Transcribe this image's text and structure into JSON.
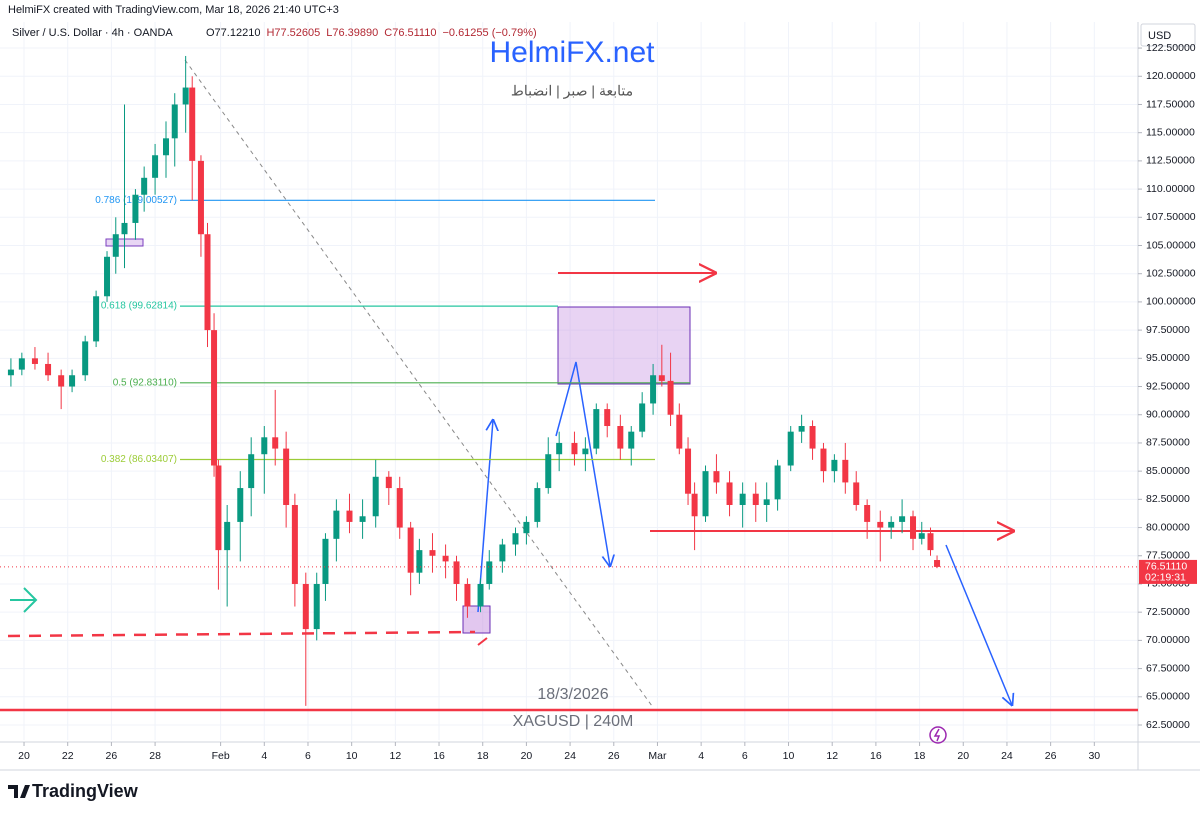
{
  "header": {
    "creator": "HelmiFX created with TradingView.com, Mar 18, 2026 21:40 UTC+3"
  },
  "chart_data": {
    "type": "candlestick",
    "symbol": "Silver / U.S. Dollar · 4h · OANDA",
    "ohlc_labels": [
      "O77.12210",
      "H77.52605",
      "L76.39890",
      "C76.51110",
      "−0.61255 (−0.79%)"
    ],
    "currency": "USD",
    "watermark_title": "HelmiFX.net",
    "watermark_subtitle": "متابعة | صبر | انضباط",
    "date_note": "18/3/2026",
    "chart_note": "XAGUSD | 240M",
    "last_price_label": "76.51110",
    "countdown": "02:19:31",
    "up_color": "#089981",
    "down_color": "#f23645",
    "grid": true,
    "xlim": [
      -0.1,
      52
    ],
    "ylim": [
      61.17,
      124.81
    ],
    "xticks": [
      {
        "value": 1,
        "label": "20"
      },
      {
        "value": 3,
        "label": "22"
      },
      {
        "value": 5,
        "label": "26"
      },
      {
        "value": 7,
        "label": "28"
      },
      {
        "value": 10,
        "label": "Feb"
      },
      {
        "value": 12,
        "label": "4"
      },
      {
        "value": 14,
        "label": "6"
      },
      {
        "value": 16,
        "label": "10"
      },
      {
        "value": 18,
        "label": "12"
      },
      {
        "value": 20,
        "label": "16"
      },
      {
        "value": 22,
        "label": "18"
      },
      {
        "value": 24,
        "label": "20"
      },
      {
        "value": 26,
        "label": "24"
      },
      {
        "value": 28,
        "label": "26"
      },
      {
        "value": 30,
        "label": "Mar"
      },
      {
        "value": 32,
        "label": "4"
      },
      {
        "value": 34,
        "label": "6"
      },
      {
        "value": 36,
        "label": "10"
      },
      {
        "value": 38,
        "label": "12"
      },
      {
        "value": 40,
        "label": "16"
      },
      {
        "value": 42,
        "label": "18"
      },
      {
        "value": 44,
        "label": "20"
      },
      {
        "value": 46,
        "label": "24"
      },
      {
        "value": 48,
        "label": "26"
      },
      {
        "value": 50,
        "label": "30"
      }
    ],
    "yticks": [
      {
        "value": 62.5,
        "label": "62.50000"
      },
      {
        "value": 65,
        "label": "65.00000"
      },
      {
        "value": 67.5,
        "label": "67.50000"
      },
      {
        "value": 70,
        "label": "70.00000"
      },
      {
        "value": 72.5,
        "label": "72.50000"
      },
      {
        "value": 75,
        "label": "75.00000"
      },
      {
        "value": 77.5,
        "label": "77.50000"
      },
      {
        "value": 80,
        "label": "80.00000"
      },
      {
        "value": 82.5,
        "label": "82.50000"
      },
      {
        "value": 85,
        "label": "85.00000"
      },
      {
        "value": 87.5,
        "label": "87.50000"
      },
      {
        "value": 90,
        "label": "90.00000"
      },
      {
        "value": 92.5,
        "label": "92.50000"
      },
      {
        "value": 95,
        "label": "95.00000"
      },
      {
        "value": 97.5,
        "label": "97.50000"
      },
      {
        "value": 100,
        "label": "100.00000"
      },
      {
        "value": 102.5,
        "label": "102.50000"
      },
      {
        "value": 105,
        "label": "105.00000"
      },
      {
        "value": 107.5,
        "label": "107.50000"
      },
      {
        "value": 110,
        "label": "110.00000"
      },
      {
        "value": 112.5,
        "label": "112.50000"
      },
      {
        "value": 115,
        "label": "115.00000"
      },
      {
        "value": 117.5,
        "label": "117.50000"
      },
      {
        "value": 120,
        "label": "120.00000"
      },
      {
        "value": 122.5,
        "label": "122.50000"
      }
    ],
    "fib_levels": [
      {
        "label": "0.786 (109.00527)",
        "value": 109.00527,
        "color": "#2196f3"
      },
      {
        "label": "0.618 (99.62814)",
        "value": 99.62814,
        "color": "#26c6a0"
      },
      {
        "label": "0.5 (92.83110)",
        "value": 92.8311,
        "color": "#4caf50"
      },
      {
        "label": "0.382 (86.03407)",
        "value": 86.03407,
        "color": "#9ccc37"
      }
    ],
    "x": [
      0.4,
      0.9,
      1.5,
      2.1,
      2.7,
      3.2,
      3.8,
      4.3,
      4.8,
      5.2,
      5.6,
      6.1,
      6.5,
      7.0,
      7.5,
      7.9,
      8.4,
      8.7,
      9.1,
      9.4,
      9.7,
      9.9,
      10.3,
      10.9,
      11.4,
      12.0,
      12.5,
      13.0,
      13.4,
      13.9,
      14.4,
      14.8,
      15.3,
      15.9,
      16.5,
      17.1,
      17.7,
      18.2,
      18.7,
      19.1,
      19.7,
      20.3,
      20.8,
      21.3,
      21.9,
      22.3,
      22.9,
      23.5,
      24.0,
      24.5,
      25.0,
      25.5,
      26.2,
      26.7,
      27.2,
      27.7,
      28.3,
      28.8,
      29.3,
      29.8,
      30.2,
      30.6,
      31.0,
      31.4,
      31.7,
      32.2,
      32.7,
      33.3,
      33.9,
      34.5,
      35.0,
      35.5,
      36.1,
      36.6,
      37.1,
      37.6,
      38.1,
      38.6,
      39.1,
      39.6,
      40.2,
      40.7,
      41.2,
      41.7,
      42.1,
      42.5,
      42.8
    ],
    "open": [
      93.5,
      94,
      95,
      94.5,
      93.5,
      92.5,
      93.5,
      96.5,
      100.5,
      104,
      106,
      107,
      109.5,
      111,
      113,
      114.5,
      117.5,
      119,
      112.5,
      106,
      97.5,
      85.5,
      78,
      80.5,
      83.5,
      86.5,
      88,
      87,
      82,
      75,
      71,
      75,
      79,
      81.5,
      80.5,
      81,
      84.5,
      83.5,
      80,
      76,
      78,
      77.5,
      77,
      75,
      73,
      75,
      77,
      78.5,
      79.5,
      80.5,
      83.5,
      86.5,
      87.5,
      86.5,
      87,
      90.5,
      89,
      87,
      88.5,
      91,
      93.5,
      93,
      90,
      87,
      83,
      81,
      85,
      84,
      82,
      83,
      82,
      82.5,
      85.5,
      88.5,
      89,
      87,
      85,
      86,
      84,
      82,
      80.5,
      80,
      80.5,
      81,
      79,
      79.5,
      77.1221
    ],
    "high": [
      95,
      95.5,
      96,
      95.5,
      94,
      94,
      97,
      101,
      104.5,
      107.5,
      117.5,
      110,
      112,
      114,
      116,
      118.5,
      121.8,
      120,
      113,
      107,
      99,
      86,
      82,
      85,
      88,
      89,
      92.2,
      88.5,
      83,
      76,
      76,
      79.5,
      82.5,
      83,
      82.5,
      86,
      85,
      84.5,
      80.5,
      79,
      79.5,
      78.5,
      77.5,
      75.5,
      75.5,
      78,
      79,
      80,
      81,
      84,
      88,
      88.5,
      88.5,
      88,
      91,
      91,
      90,
      89,
      92,
      94.5,
      96.2,
      95.5,
      91,
      88,
      84,
      85.5,
      86.5,
      85,
      84,
      84,
      84,
      86,
      89,
      90,
      89.5,
      87.5,
      86.5,
      87.5,
      85,
      82.5,
      81.5,
      81,
      82.5,
      81.5,
      80.5,
      80,
      77.52605
    ],
    "low": [
      92.5,
      93.5,
      94,
      93,
      90.5,
      92,
      93,
      96,
      100,
      102.5,
      103,
      105.5,
      108,
      109.5,
      111,
      112,
      115,
      109,
      104,
      96,
      84.5,
      74.5,
      73,
      77,
      81,
      83,
      85.5,
      80,
      73,
      64.2,
      70,
      73.5,
      77,
      79.5,
      79,
      80,
      82,
      79,
      74,
      75,
      76,
      75.5,
      73.5,
      72,
      72.5,
      74.5,
      76,
      77.5,
      78.5,
      80,
      83,
      85,
      85.5,
      85,
      86.5,
      88,
      86,
      85.5,
      88,
      90,
      92.5,
      89,
      86.5,
      82,
      78,
      80.5,
      83,
      81,
      80,
      80.5,
      80.5,
      81.5,
      85,
      87.5,
      86,
      84,
      84,
      83,
      81.5,
      79,
      77,
      79,
      79.5,
      78,
      78.5,
      77.5,
      76.3989
    ],
    "close": [
      94,
      95,
      94.5,
      93.5,
      92.5,
      93.5,
      96.5,
      100.5,
      104,
      106,
      107,
      109.5,
      111,
      113,
      114.5,
      117.5,
      119,
      112.5,
      106,
      97.5,
      85.5,
      78,
      80.5,
      83.5,
      86.5,
      88,
      87,
      82,
      75,
      71,
      75,
      79,
      81.5,
      80.5,
      81,
      84.5,
      83.5,
      80,
      76,
      78,
      77.5,
      77,
      75,
      73,
      75,
      77,
      78.5,
      79.5,
      80.5,
      83.5,
      86.5,
      87.5,
      86.5,
      87,
      90.5,
      89,
      87,
      88.5,
      91,
      93.5,
      93,
      90,
      87,
      83,
      81,
      85,
      84,
      82,
      83,
      82,
      82.5,
      85.5,
      88.5,
      89,
      87,
      85,
      86,
      84,
      82,
      80.5,
      80,
      80.5,
      81,
      79,
      79.5,
      78,
      76.5111
    ]
  },
  "footer": {
    "brand": "TradingView"
  }
}
